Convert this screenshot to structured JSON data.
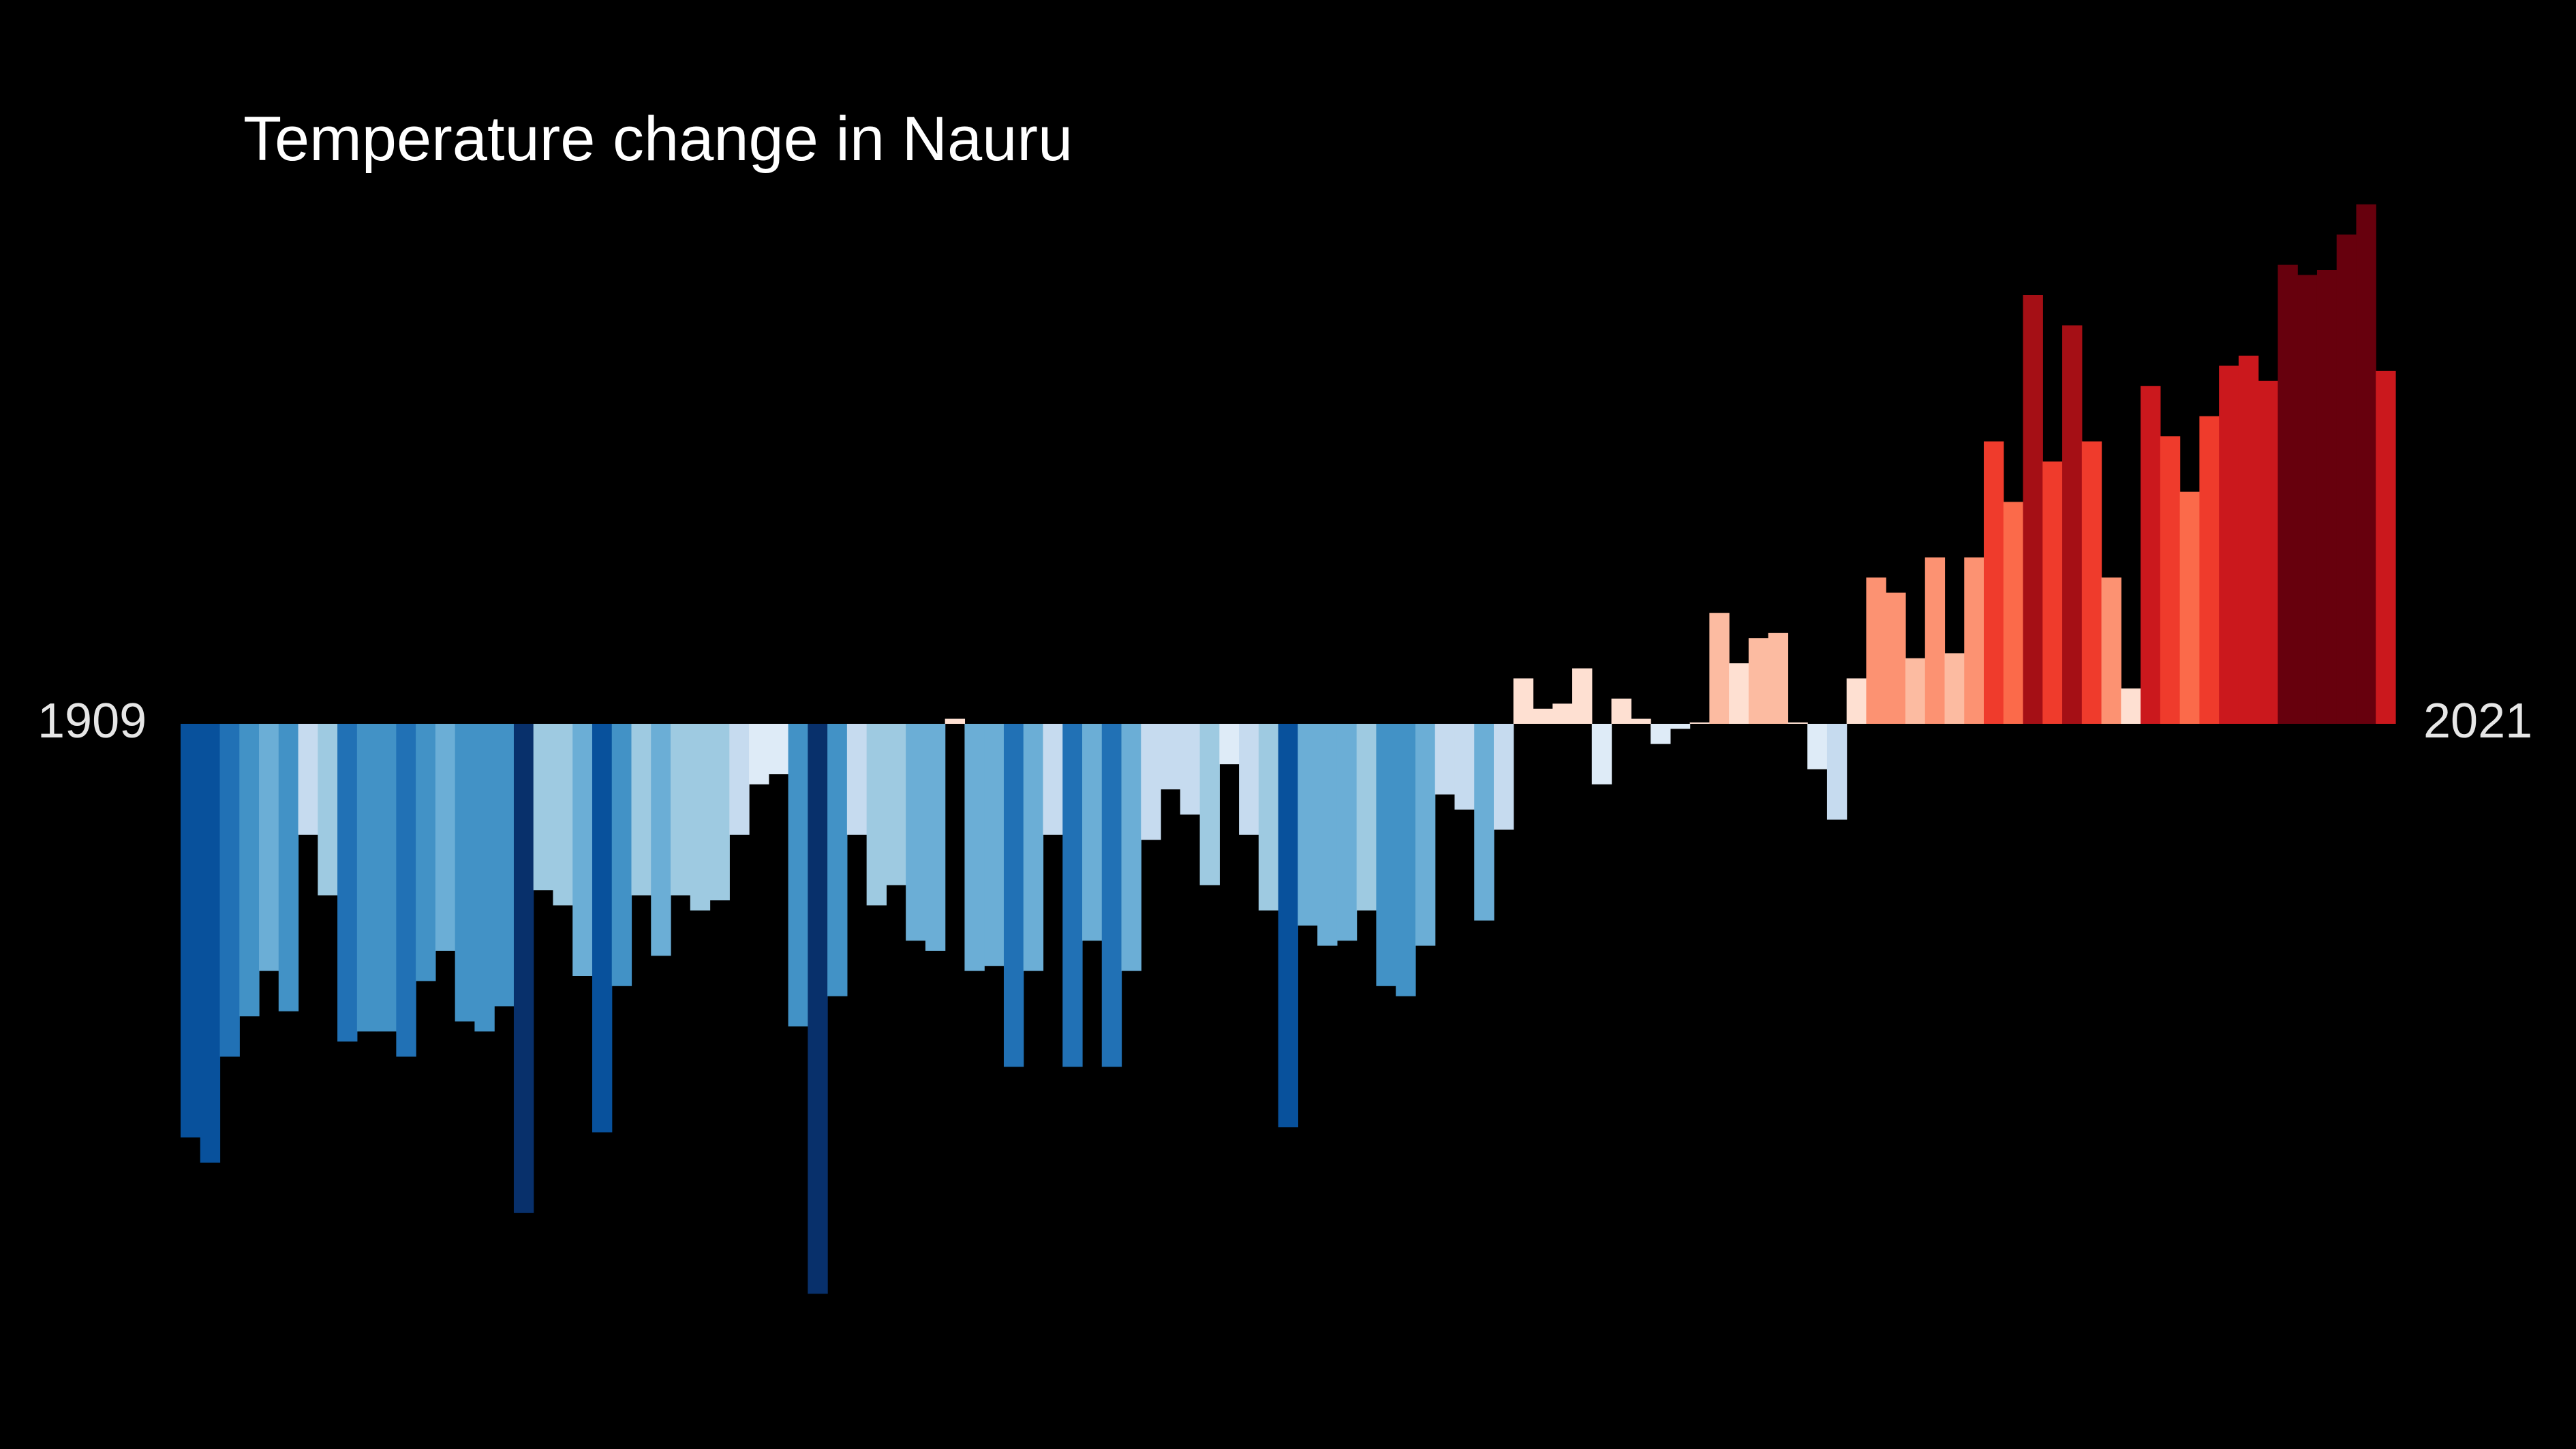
{
  "chart_data": {
    "type": "bar",
    "title": "Temperature change in Nauru",
    "x_start_label": "1909",
    "x_end_label": "2021",
    "start_year": 1909,
    "ylim": [
      -1.13,
      1.14
    ],
    "values": [
      -0.82,
      -0.87,
      -0.66,
      -0.58,
      -0.49,
      -0.57,
      -0.22,
      -0.34,
      -0.63,
      -0.61,
      -0.61,
      -0.66,
      -0.51,
      -0.45,
      -0.59,
      -0.61,
      -0.56,
      -0.97,
      -0.33,
      -0.36,
      -0.5,
      -0.81,
      -0.52,
      -0.34,
      -0.46,
      -0.34,
      -0.37,
      -0.35,
      -0.22,
      -0.12,
      -0.1,
      -0.6,
      -1.13,
      -0.54,
      -0.22,
      -0.36,
      -0.32,
      -0.43,
      -0.45,
      0.01,
      -0.49,
      -0.48,
      -0.68,
      -0.49,
      -0.22,
      -0.68,
      -0.43,
      -0.68,
      -0.49,
      -0.23,
      -0.13,
      -0.18,
      -0.32,
      -0.08,
      -0.22,
      -0.37,
      -0.8,
      -0.4,
      -0.44,
      -0.43,
      -0.37,
      -0.52,
      -0.54,
      -0.44,
      -0.14,
      -0.17,
      -0.39,
      -0.21,
      0.09,
      0.03,
      0.04,
      0.11,
      -0.12,
      0.05,
      0.01,
      -0.04,
      -0.01,
      0.0,
      0.22,
      0.12,
      0.17,
      0.18,
      0.0,
      -0.09,
      -0.19,
      0.09,
      0.29,
      0.26,
      0.13,
      0.33,
      0.14,
      0.33,
      0.56,
      0.44,
      0.85,
      0.52,
      0.79,
      0.56,
      0.29,
      0.07,
      0.67,
      0.57,
      0.46,
      0.61,
      0.71,
      0.73,
      0.68,
      0.91,
      0.89,
      0.9,
      0.97,
      1.03,
      0.7
    ]
  },
  "colors": {
    "background": "#000000",
    "title": "#ffffff",
    "year_labels": "#e6e6e6",
    "colormap": [
      "#08306b",
      "#08519c",
      "#2171b5",
      "#4292c6",
      "#6baed6",
      "#9ecae1",
      "#c6dbef",
      "#deebf7",
      "#fee0d2",
      "#fcbba1",
      "#fc9272",
      "#fb6a4a",
      "#ef3b2c",
      "#cb181d",
      "#a50f15",
      "#67000d"
    ]
  }
}
